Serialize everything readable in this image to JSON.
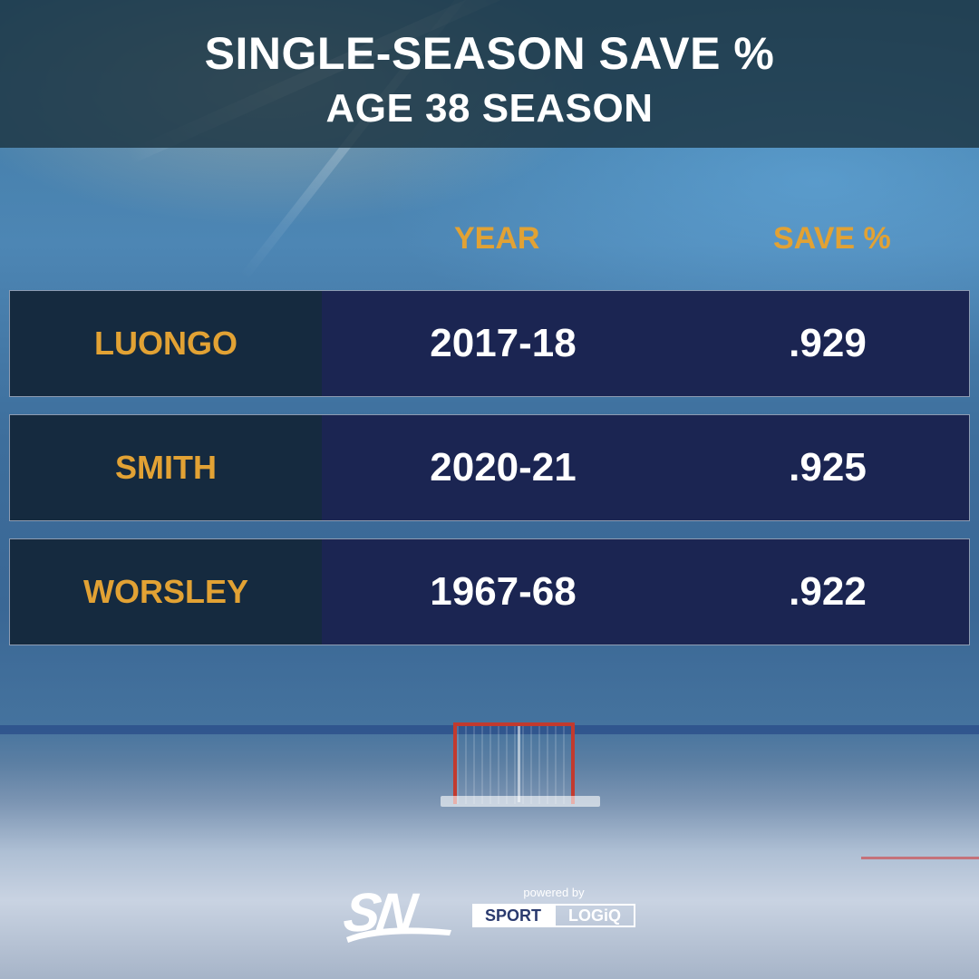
{
  "header": {
    "title": "SINGLE-SEASON SAVE %",
    "subtitle": "AGE 38 SEASON"
  },
  "columns": {
    "year": "YEAR",
    "save": "SAVE %"
  },
  "chart_data": {
    "type": "table",
    "title": "SINGLE-SEASON SAVE %",
    "subtitle": "AGE 38 SEASON",
    "columns": [
      "",
      "YEAR",
      "SAVE %"
    ],
    "rows": [
      {
        "name": "LUONGO",
        "year": "2017-18",
        "save_pct": ".929"
      },
      {
        "name": "SMITH",
        "year": "2020-21",
        "save_pct": ".925"
      },
      {
        "name": "WORSLEY",
        "year": "1967-68",
        "save_pct": ".922"
      }
    ]
  },
  "branding": {
    "logo_text": "SN",
    "powered_by": "powered by",
    "partner_part1": "SPORT",
    "partner_part2": "LOGiQ"
  },
  "colors": {
    "accent": "#e2a234",
    "row_bg": "#1b2552",
    "name_bg": "#152a3f",
    "header_bg": "#1c3442"
  }
}
